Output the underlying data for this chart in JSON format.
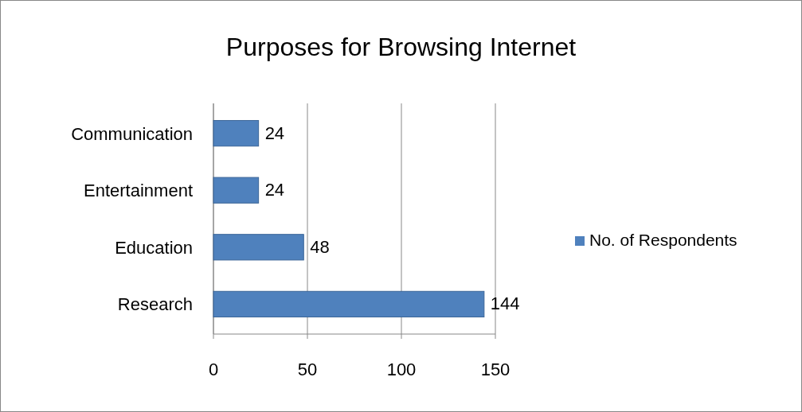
{
  "chart_data": {
    "type": "bar",
    "title": "Purposes for Browsing Internet",
    "orientation": "horizontal",
    "categories": [
      "Communication",
      "Entertainment",
      "Education",
      "Research"
    ],
    "series": [
      {
        "name": "No. of Respondents",
        "color": "#4f81bd",
        "values": [
          24,
          24,
          48,
          144
        ]
      }
    ],
    "xlim": [
      0,
      150
    ],
    "xticks": [
      0,
      50,
      100,
      150
    ],
    "grid": "x",
    "legend": "right",
    "data_labels": true
  }
}
